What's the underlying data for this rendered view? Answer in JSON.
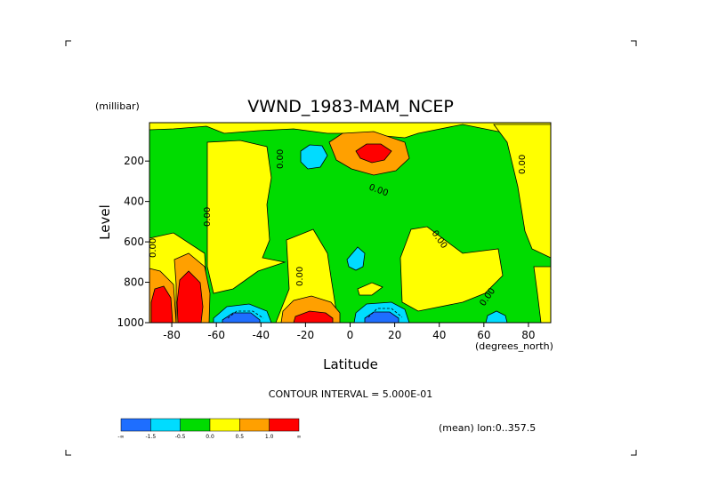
{
  "chart_data": {
    "type": "contour",
    "title": "VWND_1983-MAM_NCEP",
    "xlabel": "Latitude",
    "xunits": "(degrees_north)",
    "ylabel": "Level",
    "yunits": "(millibar)",
    "xlim": [
      -90,
      90
    ],
    "ylim": [
      1000,
      10
    ],
    "y_inverted": true,
    "x_ticks": [
      "-80",
      "-60",
      "-40",
      "-20",
      "0",
      "20",
      "40",
      "60",
      "80"
    ],
    "x_tick_values": [
      -80,
      -60,
      -40,
      -20,
      0,
      20,
      40,
      60,
      80
    ],
    "y_ticks": [
      "200",
      "400",
      "600",
      "800",
      "1000"
    ],
    "y_tick_values": [
      200,
      400,
      600,
      800,
      1000
    ],
    "contour_interval_text": "CONTOUR INTERVAL = 5.000E-01",
    "mean_text": "(mean) lon:0..357.5",
    "contour_label": "0.00",
    "colorbar": {
      "colors": [
        "#1e6eff",
        "#00dcff",
        "#00dc00",
        "#ffff00",
        "#ffa000",
        "#ff0000"
      ],
      "labels": [
        "-∞",
        "-1.5",
        "-0.5",
        "0.0",
        "0.5",
        "1.0",
        "∞"
      ]
    },
    "features": [
      {
        "name": "jet-positive",
        "lat": 10,
        "lev": 150,
        "max": 1.5
      },
      {
        "name": "upper-negative",
        "lat": -18,
        "lev": 150,
        "min": -0.5
      },
      {
        "name": "sh-surface-positive-1",
        "lat": -85,
        "lev": 900,
        "max": 1.5
      },
      {
        "name": "sh-surface-positive-2",
        "lat": -75,
        "lev": 850,
        "max": 1.5
      },
      {
        "name": "surface-positive",
        "lat": -20,
        "lev": 960,
        "max": 1.0
      },
      {
        "name": "surface-negative-1",
        "lat": -50,
        "lev": 970,
        "min": -1.0
      },
      {
        "name": "surface-negative-2",
        "lat": 12,
        "lev": 960,
        "min": -1.0
      },
      {
        "name": "surface-negative-3",
        "lat": 68,
        "lev": 980,
        "min": -0.5
      }
    ]
  }
}
